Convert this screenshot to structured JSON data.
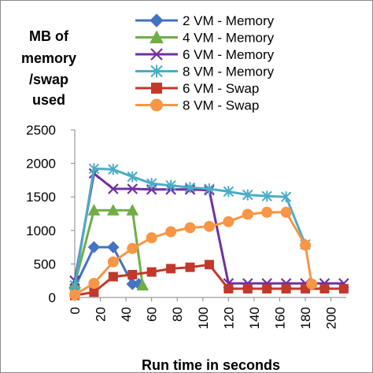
{
  "chart_data": {
    "type": "line",
    "ylabel_lines": [
      "MB of",
      "memory",
      "/swap",
      "used"
    ],
    "xlabel": "Run time in seconds",
    "ylim": [
      0,
      2500
    ],
    "yticks": [
      "0",
      "500",
      "1000",
      "1500",
      "2000",
      "2500"
    ],
    "xlim": [
      0,
      215
    ],
    "xticks": [
      "0",
      "20",
      "40",
      "60",
      "80",
      "100",
      "120",
      "140",
      "160",
      "180",
      "200"
    ],
    "legend_position": "top-right",
    "series": [
      {
        "name": "2 VM - Memory",
        "color": "#4472c4",
        "marker": "diamond",
        "x": [
          0,
          15,
          30,
          45,
          50
        ],
        "y": [
          150,
          750,
          750,
          200,
          200
        ]
      },
      {
        "name": "4 VM - Memory",
        "color": "#70ad47",
        "marker": "triangle",
        "x": [
          0,
          15,
          30,
          45,
          53
        ],
        "y": [
          200,
          1300,
          1300,
          1300,
          180
        ]
      },
      {
        "name": "6 VM - Memory",
        "color": "#7030a0",
        "marker": "x",
        "x": [
          0,
          15,
          30,
          45,
          60,
          75,
          90,
          105,
          120,
          135,
          150,
          165,
          180,
          195,
          210
        ],
        "y": [
          250,
          1850,
          1620,
          1620,
          1610,
          1610,
          1610,
          1600,
          210,
          210,
          210,
          210,
          210,
          210,
          210
        ]
      },
      {
        "name": "8 VM - Memory",
        "color": "#4bacc6",
        "marker": "star",
        "x": [
          0,
          15,
          30,
          45,
          60,
          75,
          90,
          105,
          120,
          135,
          150,
          165,
          180
        ],
        "y": [
          180,
          1920,
          1910,
          1800,
          1700,
          1670,
          1640,
          1620,
          1580,
          1530,
          1510,
          1500,
          790
        ]
      },
      {
        "name": "6 VM - Swap",
        "color": "#c0392b",
        "marker": "square",
        "x": [
          0,
          15,
          30,
          45,
          60,
          75,
          90,
          105,
          120,
          135,
          150,
          165,
          180,
          195,
          210
        ],
        "y": [
          30,
          80,
          310,
          340,
          380,
          430,
          450,
          490,
          130,
          130,
          130,
          130,
          130,
          130,
          130
        ]
      },
      {
        "name": "8 VM - Swap",
        "color": "#f79646",
        "marker": "circle",
        "x": [
          0,
          15,
          30,
          45,
          60,
          75,
          90,
          105,
          120,
          135,
          150,
          165,
          180,
          185
        ],
        "y": [
          40,
          210,
          530,
          730,
          890,
          980,
          1040,
          1060,
          1130,
          1240,
          1270,
          1270,
          780,
          200
        ]
      }
    ]
  }
}
